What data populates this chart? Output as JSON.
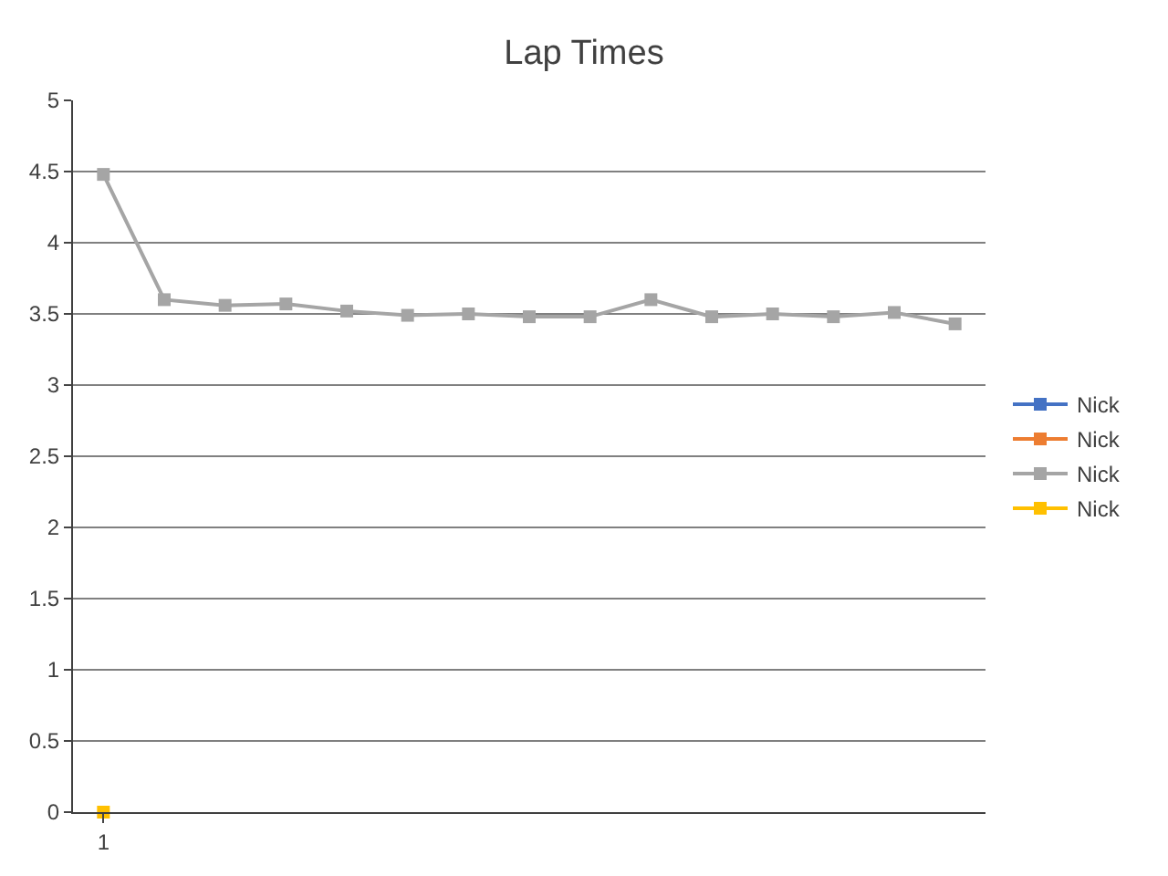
{
  "chart_data": {
    "type": "line",
    "title": "Lap Times",
    "categories": [
      "1",
      null,
      null,
      null,
      null,
      null,
      null,
      null,
      null,
      null,
      null,
      null,
      null,
      null,
      null
    ],
    "series": [
      {
        "name": "Nick",
        "color": "#4472c4",
        "values": [
          null,
          null,
          null,
          null,
          null,
          null,
          null,
          null,
          null,
          null,
          null,
          null,
          null,
          null,
          null
        ]
      },
      {
        "name": "Nick",
        "color": "#ed7d31",
        "values": [
          null,
          null,
          null,
          null,
          null,
          null,
          null,
          null,
          null,
          null,
          null,
          null,
          null,
          null,
          null
        ]
      },
      {
        "name": "Nick",
        "color": "#a5a5a5",
        "values": [
          4.48,
          3.6,
          3.56,
          3.57,
          3.52,
          3.49,
          3.5,
          3.48,
          3.48,
          3.6,
          3.48,
          3.5,
          3.48,
          3.51,
          3.43
        ]
      },
      {
        "name": "Nick",
        "color": "#ffc000",
        "values": [
          0,
          null,
          null,
          null,
          null,
          null,
          null,
          null,
          null,
          null,
          null,
          null,
          null,
          null,
          null
        ]
      }
    ],
    "ylim": [
      0,
      5
    ],
    "yticks": [
      0,
      0.5,
      1,
      1.5,
      2,
      2.5,
      3,
      3.5,
      4,
      4.5,
      5
    ],
    "grid": "y",
    "legend": "right",
    "marker": "square",
    "line_style": "solid"
  }
}
